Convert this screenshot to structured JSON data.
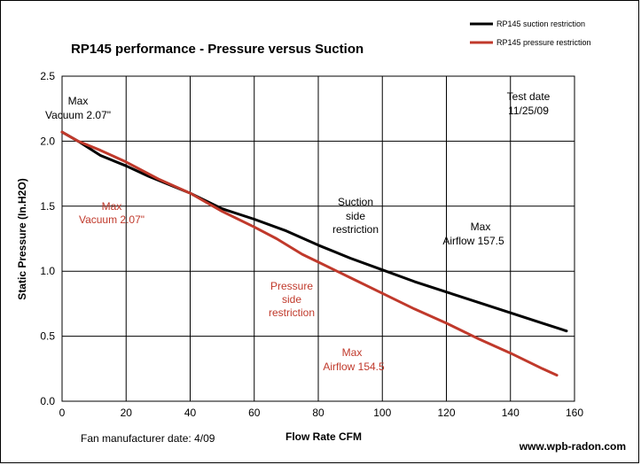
{
  "chart_data": {
    "type": "line",
    "title": "RP145  performance  -  Pressure versus Suction",
    "xlabel": "Flow Rate  CFM",
    "ylabel": "Static Pressure (In.H2O)",
    "xlim": [
      0,
      160
    ],
    "ylim": [
      0,
      2.5
    ],
    "xticks": [
      0,
      20,
      40,
      60,
      80,
      100,
      120,
      140,
      160
    ],
    "yticks": [
      0.0,
      0.5,
      1.0,
      1.5,
      2.0,
      2.5
    ],
    "xtick_labels": [
      "0",
      "20",
      "40",
      "60",
      "80",
      "100",
      "120",
      "140",
      "160"
    ],
    "ytick_labels": [
      "0.0",
      "0.5",
      "1.0",
      "1.5",
      "2.0",
      "2.5"
    ],
    "grid": true,
    "legend_position": "top-right",
    "series": [
      {
        "name": "RP145 suction restriction",
        "color": "#000000",
        "x": [
          0,
          5,
          12,
          20,
          27,
          40,
          50,
          60,
          70,
          80,
          90,
          100,
          110,
          120,
          130,
          140,
          150,
          157.5
        ],
        "y": [
          2.07,
          2.0,
          1.89,
          1.81,
          1.73,
          1.6,
          1.48,
          1.4,
          1.31,
          1.2,
          1.1,
          1.01,
          0.92,
          0.84,
          0.76,
          0.68,
          0.6,
          0.54
        ]
      },
      {
        "name": "RP145 pressure restriction",
        "color": "#c0392b",
        "x": [
          0,
          5,
          12,
          20,
          30,
          40,
          50,
          60,
          67,
          75,
          80,
          90,
          100,
          110,
          120,
          130,
          140,
          150,
          154.5
        ],
        "y": [
          2.07,
          2.0,
          1.93,
          1.84,
          1.71,
          1.6,
          1.46,
          1.34,
          1.25,
          1.13,
          1.07,
          0.95,
          0.83,
          0.71,
          0.6,
          0.48,
          0.37,
          0.25,
          0.2
        ]
      }
    ],
    "annotations": {
      "max_vacuum_black_line1": "Max",
      "max_vacuum_black_line2": "Vacuum  2.07\"",
      "max_vacuum_red_line1": "Max",
      "max_vacuum_red_line2": "Vacuum  2.07\"",
      "suction_side_line1": "Suction",
      "suction_side_line2": "side",
      "suction_side_line3": "restriction",
      "pressure_side_line1": "Pressure",
      "pressure_side_line2": "side",
      "pressure_side_line3": "restriction",
      "max_airflow_black_line1": "Max",
      "max_airflow_black_line2": "Airflow  157.5",
      "max_airflow_red_line1": "Max",
      "max_airflow_red_line2": "Airflow  154.5",
      "test_date_line1": "Test date",
      "test_date_line2": "11/25/09"
    }
  },
  "footer": {
    "manufacturer_date": "Fan manufacturer date: 4/09",
    "website": "www.wpb-radon.com"
  }
}
